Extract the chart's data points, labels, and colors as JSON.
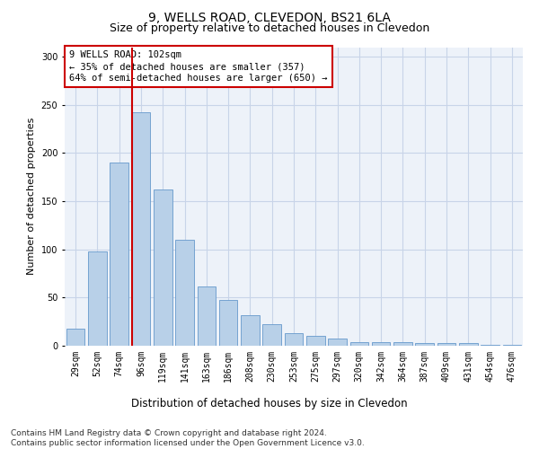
{
  "title": "9, WELLS ROAD, CLEVEDON, BS21 6LA",
  "subtitle": "Size of property relative to detached houses in Clevedon",
  "xlabel": "Distribution of detached houses by size in Clevedon",
  "ylabel": "Number of detached properties",
  "categories": [
    "29sqm",
    "52sqm",
    "74sqm",
    "96sqm",
    "119sqm",
    "141sqm",
    "163sqm",
    "186sqm",
    "208sqm",
    "230sqm",
    "253sqm",
    "275sqm",
    "297sqm",
    "320sqm",
    "342sqm",
    "364sqm",
    "387sqm",
    "409sqm",
    "431sqm",
    "454sqm",
    "476sqm"
  ],
  "values": [
    18,
    98,
    190,
    242,
    162,
    110,
    62,
    48,
    32,
    22,
    13,
    10,
    7,
    4,
    4,
    4,
    3,
    3,
    3,
    1,
    1
  ],
  "bar_color": "#b8d0e8",
  "bar_edge_color": "#6699cc",
  "vline_color": "#cc0000",
  "vline_x_index": 3,
  "annotation_box_text": "9 WELLS ROAD: 102sqm\n← 35% of detached houses are smaller (357)\n64% of semi-detached houses are larger (650) →",
  "annotation_fontsize": 7.5,
  "title_fontsize": 10,
  "subtitle_fontsize": 9,
  "xlabel_fontsize": 8.5,
  "ylabel_fontsize": 8,
  "tick_fontsize": 7,
  "footer_text": "Contains HM Land Registry data © Crown copyright and database right 2024.\nContains public sector information licensed under the Open Government Licence v3.0.",
  "footer_fontsize": 6.5,
  "ylim": [
    0,
    310
  ],
  "yticks": [
    0,
    50,
    100,
    150,
    200,
    250,
    300
  ],
  "grid_color": "#c8d4e8",
  "background_color": "#edf2f9"
}
